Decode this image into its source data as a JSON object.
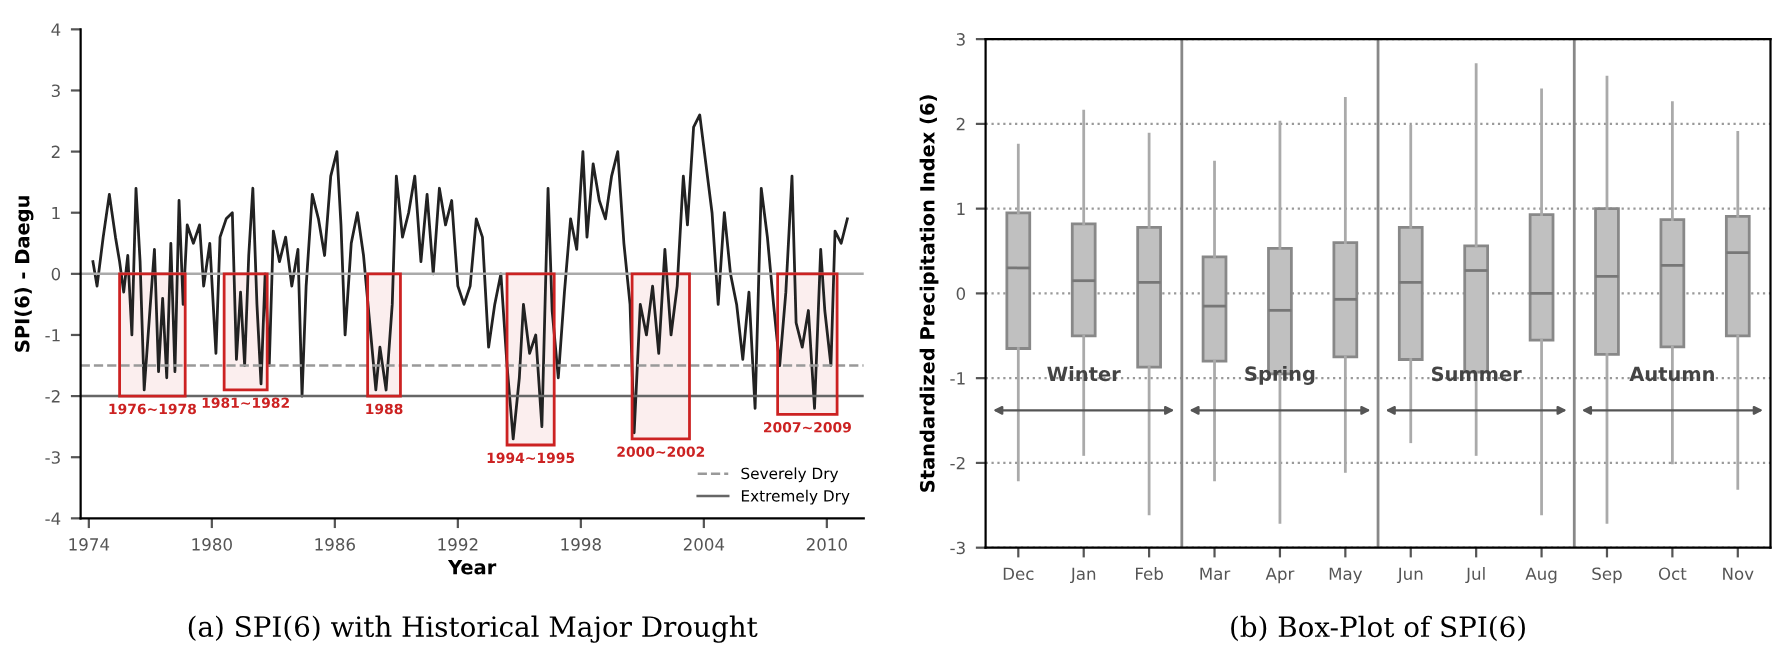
{
  "chart_data": [
    {
      "type": "line",
      "title": "(a) SPI(6) with Historical Major Drought",
      "xlabel": "Year",
      "ylabel": "SPI(6) - Daegu",
      "series": [
        {
          "color": "#222222",
          "x": [
            1974.2,
            1974.4,
            1974.7,
            1975.0,
            1975.3,
            1975.5,
            1975.7,
            1975.9,
            1976.1,
            1976.3,
            1976.5,
            1976.7,
            1977.0,
            1977.2,
            1977.4,
            1977.6,
            1977.8,
            1978.0,
            1978.2,
            1978.4,
            1978.6,
            1978.8,
            1979.1,
            1979.4,
            1979.6,
            1979.9,
            1980.2,
            1980.4,
            1980.7,
            1981.0,
            1981.2,
            1981.4,
            1981.6,
            1981.8,
            1982.0,
            1982.2,
            1982.4,
            1982.6,
            1982.8,
            1983.0,
            1983.3,
            1983.6,
            1983.9,
            1984.2,
            1984.4,
            1984.6,
            1984.9,
            1985.2,
            1985.5,
            1985.8,
            1986.1,
            1986.3,
            1986.5,
            1986.8,
            1987.1,
            1987.4,
            1987.7,
            1988.0,
            1988.2,
            1988.5,
            1988.8,
            1989.0,
            1989.3,
            1989.6,
            1989.9,
            1990.2,
            1990.5,
            1990.8,
            1991.1,
            1991.4,
            1991.7,
            1992.0,
            1992.3,
            1992.6,
            1992.9,
            1993.2,
            1993.5,
            1993.8,
            1994.1,
            1994.4,
            1994.7,
            1995.0,
            1995.2,
            1995.5,
            1995.8,
            1996.1,
            1996.4,
            1996.6,
            1996.9,
            1997.2,
            1997.5,
            1997.8,
            1998.1,
            1998.3,
            1998.6,
            1998.9,
            1999.2,
            1999.5,
            1999.8,
            2000.1,
            2000.4,
            2000.6,
            2000.9,
            2001.2,
            2001.5,
            2001.8,
            2002.1,
            2002.4,
            2002.7,
            2003.0,
            2003.2,
            2003.5,
            2003.8,
            2004.1,
            2004.4,
            2004.7,
            2005.0,
            2005.3,
            2005.6,
            2005.9,
            2006.2,
            2006.5,
            2006.8,
            2007.1,
            2007.4,
            2007.7,
            2008.0,
            2008.3,
            2008.5,
            2008.8,
            2009.1,
            2009.4,
            2009.7,
            2009.9,
            2010.2,
            2010.4,
            2010.7,
            2011.0
          ],
          "values": [
            0.2,
            -0.2,
            0.6,
            1.3,
            0.6,
            0.2,
            -0.3,
            0.3,
            -1.0,
            1.4,
            0.2,
            -1.9,
            -0.5,
            0.4,
            -1.6,
            -0.4,
            -1.7,
            0.5,
            -1.6,
            1.2,
            -0.5,
            0.8,
            0.5,
            0.8,
            -0.2,
            0.5,
            -1.3,
            0.6,
            0.9,
            1.0,
            -1.4,
            -0.3,
            -1.5,
            0.3,
            1.4,
            -0.5,
            -1.8,
            0.0,
            -1.5,
            0.7,
            0.2,
            0.6,
            -0.2,
            0.4,
            -2.0,
            -0.2,
            1.3,
            0.9,
            0.3,
            1.6,
            2.0,
            0.8,
            -1.0,
            0.5,
            1.0,
            0.3,
            -0.8,
            -1.9,
            -1.2,
            -1.9,
            -0.5,
            1.6,
            0.6,
            1.0,
            1.6,
            0.2,
            1.3,
            0.0,
            1.4,
            0.8,
            1.2,
            -0.2,
            -0.5,
            -0.2,
            0.9,
            0.6,
            -1.2,
            -0.5,
            0.0,
            -1.5,
            -2.7,
            -1.7,
            -0.5,
            -1.3,
            -1.0,
            -2.5,
            1.4,
            -0.6,
            -1.7,
            -0.3,
            0.9,
            0.4,
            2.0,
            0.6,
            1.8,
            1.2,
            0.9,
            1.6,
            2.0,
            0.5,
            -0.5,
            -2.6,
            -0.5,
            -1.0,
            -0.2,
            -1.3,
            0.4,
            -1.0,
            -0.2,
            1.6,
            0.8,
            2.4,
            2.6,
            1.8,
            1.0,
            -0.5,
            1.0,
            0.0,
            -0.5,
            -1.4,
            -0.3,
            -2.2,
            1.4,
            0.6,
            -0.5,
            -1.5,
            -0.3,
            1.6,
            -0.8,
            -1.2,
            -0.6,
            -2.2,
            0.4,
            -0.6,
            -1.5,
            0.7,
            0.5,
            0.9
          ]
        }
      ],
      "xlim": [
        1973.6,
        2011.8
      ],
      "xticks": [
        1974,
        1980,
        1986,
        1992,
        1998,
        2004,
        2010
      ],
      "ylim": [
        -4,
        4
      ],
      "yticks": [
        -4,
        -3,
        -2,
        -1,
        0,
        1,
        2,
        3,
        4
      ],
      "grid": false,
      "legend": "bottom right",
      "ref_lines": [
        {
          "axis": "y",
          "value": 0,
          "color": "#aaaaaa"
        },
        {
          "axis": "y",
          "value": -1.5,
          "label": "Severely Dry",
          "color": "#999999",
          "line_style": "dashed"
        },
        {
          "axis": "y",
          "value": -2,
          "label": "Extremely Dry",
          "color": "#666666",
          "line_style": "solid"
        }
      ],
      "bands": [
        {
          "axis": "x",
          "from": 1975.5,
          "to": 1978.7,
          "label": "1976~1978",
          "color": "#cc2222"
        },
        {
          "axis": "x",
          "from": 1980.6,
          "to": 1982.7,
          "label": "1981~1982",
          "color": "#cc2222"
        },
        {
          "axis": "x",
          "from": 1987.6,
          "to": 1989.2,
          "label": "1988",
          "color": "#cc2222"
        },
        {
          "axis": "x",
          "from": 1994.4,
          "to": 1996.7,
          "label": "1994~1995",
          "color": "#cc2222"
        },
        {
          "axis": "x",
          "from": 2000.5,
          "to": 2003.3,
          "label": "2000~2002",
          "color": "#cc2222"
        },
        {
          "axis": "x",
          "from": 2007.6,
          "to": 2010.5,
          "label": "2007~2009",
          "color": "#cc2222"
        }
      ]
    },
    {
      "type": "box",
      "title": "(b) Box-Plot of SPI(6)",
      "ylabel": "Standardized Precipitation Index (6)",
      "categories": [
        "Dec",
        "Jan",
        "Feb",
        "Mar",
        "Apr",
        "May",
        "Jun",
        "Jul",
        "Aug",
        "Sep",
        "Oct",
        "Nov"
      ],
      "series": [
        {
          "color": "#c0c0c0",
          "boxes": [
            {
              "low": -2.2,
              "q1": -0.65,
              "median": 0.3,
              "q3": 0.95,
              "high": 1.75
            },
            {
              "low": -1.9,
              "q1": -0.5,
              "median": 0.15,
              "q3": 0.82,
              "high": 2.15
            },
            {
              "low": -2.6,
              "q1": -0.87,
              "median": 0.13,
              "q3": 0.78,
              "high": 1.88
            },
            {
              "low": -2.2,
              "q1": -0.8,
              "median": -0.15,
              "q3": 0.43,
              "high": 1.55
            },
            {
              "low": -2.7,
              "q1": -0.95,
              "median": -0.2,
              "q3": 0.53,
              "high": 2.02
            },
            {
              "low": -2.1,
              "q1": -0.75,
              "median": -0.07,
              "q3": 0.6,
              "high": 2.3
            },
            {
              "low": -1.75,
              "q1": -0.78,
              "median": 0.13,
              "q3": 0.78,
              "high": 1.97
            },
            {
              "low": -1.9,
              "q1": -0.93,
              "median": 0.27,
              "q3": 0.56,
              "high": 2.7
            },
            {
              "low": -2.6,
              "q1": -0.55,
              "median": 0.0,
              "q3": 0.93,
              "high": 2.4
            },
            {
              "low": -2.7,
              "q1": -0.72,
              "median": 0.2,
              "q3": 1.0,
              "high": 2.55
            },
            {
              "low": -2.0,
              "q1": -0.63,
              "median": 0.33,
              "q3": 0.87,
              "high": 2.25
            },
            {
              "low": -2.3,
              "q1": -0.5,
              "median": 0.48,
              "q3": 0.91,
              "high": 1.9
            }
          ]
        }
      ],
      "ylim": [
        -3,
        3
      ],
      "yticks": [
        -3,
        -2,
        -1,
        0,
        1,
        2,
        3
      ],
      "grid": "y",
      "annotations": [
        "Winter",
        "Spring",
        "Summer",
        "Autumn"
      ]
    }
  ]
}
